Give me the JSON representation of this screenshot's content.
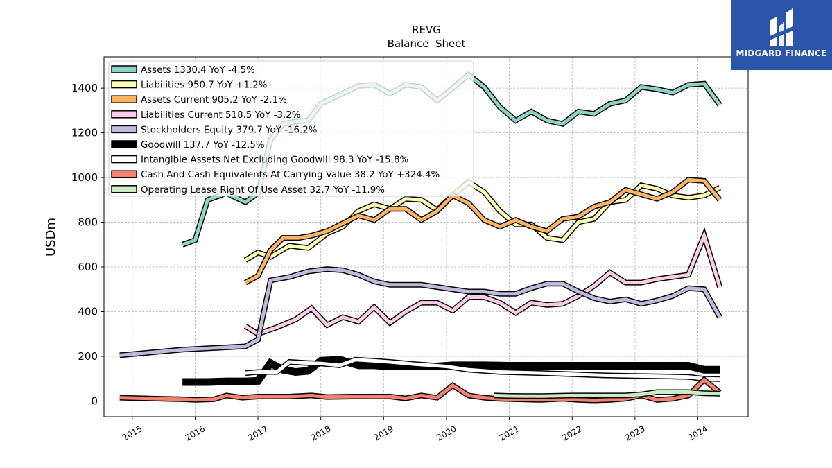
{
  "brand": {
    "name": "MIDGARD FINANCE",
    "color": "#2b55a8"
  },
  "chart_data": {
    "type": "line",
    "title": "REVG",
    "subtitle": "Balance  Sheet",
    "ylabel": "USDm",
    "xlabel": "",
    "xlim": [
      2014.55,
      2024.8
    ],
    "ylim": [
      -70,
      1540
    ],
    "grid": true,
    "legend_position": "top-left",
    "x_ticks": [
      {
        "label": "2015",
        "x": 2015.0
      },
      {
        "label": "2016",
        "x": 2016.0
      },
      {
        "label": "2017",
        "x": 2017.0
      },
      {
        "label": "2018",
        "x": 2018.0
      },
      {
        "label": "2019",
        "x": 2019.0
      },
      {
        "label": "2020",
        "x": 2020.0
      },
      {
        "label": "2021",
        "x": 2021.0
      },
      {
        "label": "2022",
        "x": 2022.0
      },
      {
        "label": "2023",
        "x": 2023.0
      },
      {
        "label": "2024",
        "x": 2024.0
      }
    ],
    "y_ticks": [
      {
        "label": "0",
        "y": 0
      },
      {
        "label": "200",
        "y": 200
      },
      {
        "label": "400",
        "y": 400
      },
      {
        "label": "600",
        "y": 600
      },
      {
        "label": "800",
        "y": 800
      },
      {
        "label": "1000",
        "y": 1000
      },
      {
        "label": "1200",
        "y": 1200
      },
      {
        "label": "1400",
        "y": 1400
      }
    ],
    "series": [
      {
        "name": "Assets",
        "legend": "Assets  1330.4 YoY -4.5%",
        "color": "#8dd3c7",
        "width": 5,
        "points": [
          [
            2015.8,
            700
          ],
          [
            2016.0,
            720
          ],
          [
            2016.2,
            900
          ],
          [
            2016.5,
            930
          ],
          [
            2016.8,
            890
          ],
          [
            2017.0,
            930
          ],
          [
            2017.2,
            1170
          ],
          [
            2017.4,
            1240
          ],
          [
            2017.6,
            1250
          ],
          [
            2017.8,
            1255
          ],
          [
            2018.0,
            1330
          ],
          [
            2018.3,
            1370
          ],
          [
            2018.6,
            1410
          ],
          [
            2018.85,
            1415
          ],
          [
            2019.1,
            1375
          ],
          [
            2019.35,
            1415
          ],
          [
            2019.6,
            1405
          ],
          [
            2019.85,
            1345
          ],
          [
            2020.1,
            1400
          ],
          [
            2020.35,
            1460
          ],
          [
            2020.6,
            1405
          ],
          [
            2020.85,
            1315
          ],
          [
            2021.1,
            1255
          ],
          [
            2021.35,
            1295
          ],
          [
            2021.6,
            1255
          ],
          [
            2021.85,
            1240
          ],
          [
            2022.1,
            1295
          ],
          [
            2022.35,
            1285
          ],
          [
            2022.6,
            1330
          ],
          [
            2022.85,
            1345
          ],
          [
            2023.1,
            1405
          ],
          [
            2023.35,
            1395
          ],
          [
            2023.6,
            1380
          ],
          [
            2023.85,
            1415
          ],
          [
            2024.1,
            1420
          ],
          [
            2024.35,
            1325
          ]
        ]
      },
      {
        "name": "Liabilities",
        "legend": "Liabilities  950.7 YoY +1.2%",
        "color": "#ffffb3",
        "width": 5,
        "points": [
          [
            2016.8,
            630
          ],
          [
            2017.0,
            665
          ],
          [
            2017.2,
            645
          ],
          [
            2017.5,
            695
          ],
          [
            2017.8,
            685
          ],
          [
            2018.1,
            750
          ],
          [
            2018.35,
            780
          ],
          [
            2018.6,
            850
          ],
          [
            2018.85,
            880
          ],
          [
            2019.1,
            860
          ],
          [
            2019.35,
            905
          ],
          [
            2019.6,
            900
          ],
          [
            2019.85,
            855
          ],
          [
            2020.1,
            920
          ],
          [
            2020.35,
            980
          ],
          [
            2020.6,
            935
          ],
          [
            2020.85,
            850
          ],
          [
            2021.1,
            790
          ],
          [
            2021.35,
            790
          ],
          [
            2021.6,
            730
          ],
          [
            2021.85,
            720
          ],
          [
            2022.1,
            800
          ],
          [
            2022.35,
            815
          ],
          [
            2022.6,
            890
          ],
          [
            2022.85,
            900
          ],
          [
            2023.1,
            965
          ],
          [
            2023.35,
            950
          ],
          [
            2023.6,
            920
          ],
          [
            2023.85,
            910
          ],
          [
            2024.1,
            920
          ],
          [
            2024.35,
            955
          ]
        ]
      },
      {
        "name": "Assets Current",
        "legend": "Assets Current  905.2 YoY -2.1%",
        "color": "#fdb462",
        "width": 5,
        "points": [
          [
            2016.8,
            530
          ],
          [
            2017.0,
            560
          ],
          [
            2017.2,
            675
          ],
          [
            2017.4,
            730
          ],
          [
            2017.65,
            730
          ],
          [
            2017.85,
            740
          ],
          [
            2018.1,
            760
          ],
          [
            2018.35,
            795
          ],
          [
            2018.6,
            830
          ],
          [
            2018.85,
            810
          ],
          [
            2019.1,
            860
          ],
          [
            2019.35,
            860
          ],
          [
            2019.6,
            810
          ],
          [
            2019.85,
            850
          ],
          [
            2020.1,
            920
          ],
          [
            2020.35,
            885
          ],
          [
            2020.6,
            810
          ],
          [
            2020.85,
            780
          ],
          [
            2021.1,
            810
          ],
          [
            2021.35,
            780
          ],
          [
            2021.6,
            760
          ],
          [
            2021.85,
            815
          ],
          [
            2022.1,
            825
          ],
          [
            2022.35,
            870
          ],
          [
            2022.6,
            890
          ],
          [
            2022.85,
            945
          ],
          [
            2023.1,
            925
          ],
          [
            2023.35,
            905
          ],
          [
            2023.6,
            935
          ],
          [
            2023.85,
            990
          ],
          [
            2024.1,
            985
          ],
          [
            2024.35,
            900
          ]
        ]
      },
      {
        "name": "Liabilities Current",
        "legend": "Liabilities Current  518.5 YoY -3.2%",
        "color": "#fccde5",
        "width": 5,
        "points": [
          [
            2016.8,
            335
          ],
          [
            2017.0,
            300
          ],
          [
            2017.3,
            330
          ],
          [
            2017.6,
            365
          ],
          [
            2017.85,
            415
          ],
          [
            2018.1,
            340
          ],
          [
            2018.35,
            375
          ],
          [
            2018.6,
            355
          ],
          [
            2018.85,
            420
          ],
          [
            2019.1,
            350
          ],
          [
            2019.35,
            400
          ],
          [
            2019.6,
            440
          ],
          [
            2019.85,
            440
          ],
          [
            2020.1,
            405
          ],
          [
            2020.35,
            465
          ],
          [
            2020.6,
            465
          ],
          [
            2020.85,
            440
          ],
          [
            2021.1,
            395
          ],
          [
            2021.35,
            440
          ],
          [
            2021.6,
            430
          ],
          [
            2021.85,
            435
          ],
          [
            2022.1,
            470
          ],
          [
            2022.35,
            515
          ],
          [
            2022.6,
            575
          ],
          [
            2022.85,
            530
          ],
          [
            2023.1,
            530
          ],
          [
            2023.35,
            545
          ],
          [
            2023.6,
            555
          ],
          [
            2023.85,
            565
          ],
          [
            2024.1,
            740
          ],
          [
            2024.35,
            510
          ]
        ]
      },
      {
        "name": "Stockholders Equity",
        "legend": "Stockholders Equity  379.7 YoY -16.2%",
        "color": "#bebada",
        "width": 5,
        "points": [
          [
            2014.8,
            205
          ],
          [
            2015.8,
            230
          ],
          [
            2016.8,
            245
          ],
          [
            2017.0,
            275
          ],
          [
            2017.2,
            540
          ],
          [
            2017.5,
            555
          ],
          [
            2017.8,
            580
          ],
          [
            2018.1,
            590
          ],
          [
            2018.35,
            585
          ],
          [
            2018.6,
            565
          ],
          [
            2018.85,
            535
          ],
          [
            2019.1,
            520
          ],
          [
            2019.35,
            520
          ],
          [
            2019.6,
            520
          ],
          [
            2019.85,
            510
          ],
          [
            2020.1,
            500
          ],
          [
            2020.35,
            490
          ],
          [
            2020.6,
            490
          ],
          [
            2020.85,
            480
          ],
          [
            2021.1,
            480
          ],
          [
            2021.35,
            505
          ],
          [
            2021.6,
            525
          ],
          [
            2021.85,
            525
          ],
          [
            2022.1,
            490
          ],
          [
            2022.35,
            460
          ],
          [
            2022.6,
            445
          ],
          [
            2022.85,
            455
          ],
          [
            2023.1,
            435
          ],
          [
            2023.35,
            450
          ],
          [
            2023.6,
            470
          ],
          [
            2023.85,
            505
          ],
          [
            2024.1,
            500
          ],
          [
            2024.35,
            375
          ]
        ]
      },
      {
        "name": "Goodwill",
        "legend": "Goodwill  137.7 YoY -12.5%",
        "color": "#000000",
        "width": 8,
        "points": [
          [
            2015.8,
            85
          ],
          [
            2016.2,
            85
          ],
          [
            2016.5,
            88
          ],
          [
            2016.8,
            88
          ],
          [
            2017.0,
            90
          ],
          [
            2017.2,
            170
          ],
          [
            2017.4,
            140
          ],
          [
            2017.6,
            130
          ],
          [
            2017.8,
            135
          ],
          [
            2018.0,
            180
          ],
          [
            2018.3,
            185
          ],
          [
            2018.6,
            160
          ],
          [
            2018.85,
            160
          ],
          [
            2019.1,
            155
          ],
          [
            2019.35,
            155
          ],
          [
            2019.6,
            155
          ],
          [
            2019.85,
            155
          ],
          [
            2020.1,
            160
          ],
          [
            2020.35,
            160
          ],
          [
            2020.6,
            160
          ],
          [
            2021.0,
            158
          ],
          [
            2021.5,
            158
          ],
          [
            2022.0,
            158
          ],
          [
            2022.5,
            158
          ],
          [
            2023.0,
            158
          ],
          [
            2023.5,
            158
          ],
          [
            2023.85,
            158
          ],
          [
            2024.1,
            140
          ],
          [
            2024.35,
            140
          ]
        ]
      },
      {
        "name": "Intangible Assets Net Excluding Goodwill",
        "legend": "Intangible Assets Net Excluding Goodwill  98.3 YoY -15.8%",
        "color": "#ffffff",
        "width": 5,
        "points": [
          [
            2016.8,
            125
          ],
          [
            2017.0,
            130
          ],
          [
            2017.3,
            130
          ],
          [
            2017.5,
            175
          ],
          [
            2017.8,
            170
          ],
          [
            2018.0,
            168
          ],
          [
            2018.3,
            160
          ],
          [
            2018.55,
            185
          ],
          [
            2018.85,
            180
          ],
          [
            2019.1,
            175
          ],
          [
            2019.5,
            165
          ],
          [
            2020.0,
            155
          ],
          [
            2020.35,
            140
          ],
          [
            2020.85,
            130
          ],
          [
            2021.5,
            125
          ],
          [
            2022.0,
            120
          ],
          [
            2022.5,
            115
          ],
          [
            2023.0,
            112
          ],
          [
            2023.5,
            110
          ],
          [
            2023.85,
            108
          ],
          [
            2024.1,
            100
          ],
          [
            2024.35,
            98
          ]
        ]
      },
      {
        "name": "Cash And Cash Equivalents At Carrying Value",
        "legend": "Cash And Cash Equivalents At Carrying Value  38.2 YoY +324.4%",
        "color": "#fb8072",
        "width": 5,
        "points": [
          [
            2014.8,
            15
          ],
          [
            2015.8,
            8
          ],
          [
            2016.0,
            5
          ],
          [
            2016.3,
            8
          ],
          [
            2016.5,
            25
          ],
          [
            2016.75,
            15
          ],
          [
            2017.0,
            20
          ],
          [
            2017.5,
            20
          ],
          [
            2017.85,
            25
          ],
          [
            2018.1,
            18
          ],
          [
            2018.5,
            20
          ],
          [
            2018.85,
            20
          ],
          [
            2019.1,
            20
          ],
          [
            2019.35,
            12
          ],
          [
            2019.6,
            25
          ],
          [
            2019.85,
            15
          ],
          [
            2020.1,
            70
          ],
          [
            2020.35,
            25
          ],
          [
            2020.6,
            15
          ],
          [
            2020.85,
            10
          ],
          [
            2021.1,
            8
          ],
          [
            2021.5,
            5
          ],
          [
            2021.85,
            10
          ],
          [
            2022.1,
            5
          ],
          [
            2022.35,
            3
          ],
          [
            2022.6,
            5
          ],
          [
            2022.85,
            10
          ],
          [
            2023.1,
            25
          ],
          [
            2023.35,
            5
          ],
          [
            2023.6,
            10
          ],
          [
            2023.85,
            25
          ],
          [
            2024.1,
            95
          ],
          [
            2024.35,
            38
          ]
        ]
      },
      {
        "name": "Operating Lease Right Of Use Asset",
        "legend": "Operating Lease Right Of Use Asset  32.7 YoY -11.9%",
        "color": "#ccebc5",
        "width": 5,
        "points": [
          [
            2020.75,
            25
          ],
          [
            2021.0,
            23
          ],
          [
            2021.5,
            22
          ],
          [
            2022.0,
            25
          ],
          [
            2022.5,
            25
          ],
          [
            2022.85,
            25
          ],
          [
            2023.1,
            30
          ],
          [
            2023.35,
            40
          ],
          [
            2023.6,
            40
          ],
          [
            2023.85,
            40
          ],
          [
            2024.1,
            35
          ],
          [
            2024.35,
            33
          ]
        ]
      }
    ]
  }
}
